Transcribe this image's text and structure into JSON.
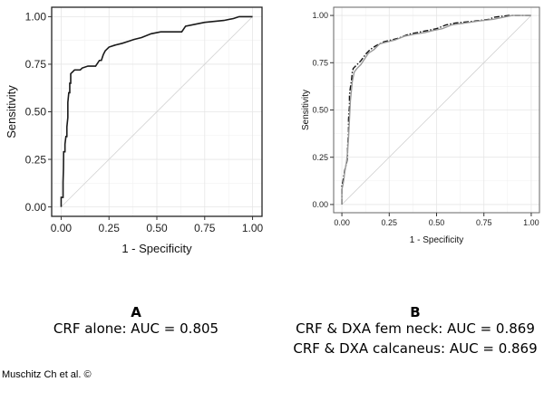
{
  "chart_data": [
    {
      "type": "line",
      "panel": "A",
      "caption": "CRF alone: AUC = 0.805",
      "xlabel": "1 - Specificity",
      "ylabel": "Sensitivity",
      "xlim": [
        0,
        1
      ],
      "ylim": [
        0,
        1
      ],
      "xticks": [
        "0.00",
        "0.25",
        "0.50",
        "0.75",
        "1.00"
      ],
      "yticks": [
        "0.00",
        "0.25",
        "0.50",
        "0.75",
        "1.00"
      ],
      "grid": true,
      "reference_line": true,
      "series": [
        {
          "color": "#1a1a1a",
          "style": "solid",
          "points": [
            [
              0,
              0
            ],
            [
              0,
              0.05
            ],
            [
              0.01,
              0.05
            ],
            [
              0.01,
              0.13
            ],
            [
              0.012,
              0.2
            ],
            [
              0.013,
              0.29
            ],
            [
              0.02,
              0.29
            ],
            [
              0.02,
              0.33
            ],
            [
              0.025,
              0.37
            ],
            [
              0.03,
              0.37
            ],
            [
              0.03,
              0.42
            ],
            [
              0.035,
              0.47
            ],
            [
              0.035,
              0.55
            ],
            [
              0.04,
              0.6
            ],
            [
              0.045,
              0.6
            ],
            [
              0.045,
              0.65
            ],
            [
              0.05,
              0.65
            ],
            [
              0.05,
              0.7
            ],
            [
              0.07,
              0.72
            ],
            [
              0.1,
              0.72
            ],
            [
              0.11,
              0.73
            ],
            [
              0.14,
              0.74
            ],
            [
              0.18,
              0.74
            ],
            [
              0.2,
              0.77
            ],
            [
              0.21,
              0.77
            ],
            [
              0.22,
              0.8
            ],
            [
              0.23,
              0.82
            ],
            [
              0.25,
              0.84
            ],
            [
              0.28,
              0.85
            ],
            [
              0.32,
              0.86
            ],
            [
              0.35,
              0.87
            ],
            [
              0.38,
              0.88
            ],
            [
              0.42,
              0.89
            ],
            [
              0.47,
              0.91
            ],
            [
              0.52,
              0.92
            ],
            [
              0.6,
              0.92
            ],
            [
              0.63,
              0.92
            ],
            [
              0.65,
              0.95
            ],
            [
              0.7,
              0.96
            ],
            [
              0.75,
              0.97
            ],
            [
              0.85,
              0.98
            ],
            [
              0.9,
              0.99
            ],
            [
              0.93,
              1
            ],
            [
              1,
              1
            ]
          ]
        }
      ]
    },
    {
      "type": "line",
      "panel": "B",
      "caption": [
        "CRF & DXA fem neck:  AUC = 0.869",
        "CRF & DXA calcaneus: AUC = 0.869"
      ],
      "xlabel": "1 - Specificity",
      "ylabel": "Sensitivity",
      "xlim": [
        0,
        1
      ],
      "ylim": [
        0,
        1
      ],
      "xticks": [
        "0.00",
        "0.25",
        "0.50",
        "0.75",
        "1.00"
      ],
      "yticks": [
        "0.00",
        "0.25",
        "0.50",
        "0.75",
        "1.00"
      ],
      "grid": true,
      "reference_line": true,
      "series": [
        {
          "color": "#111111",
          "style": "dashed",
          "points": [
            [
              0,
              0
            ],
            [
              0,
              0.1
            ],
            [
              0.005,
              0.12
            ],
            [
              0.01,
              0.15
            ],
            [
              0.015,
              0.18
            ],
            [
              0.02,
              0.2
            ],
            [
              0.025,
              0.22
            ],
            [
              0.03,
              0.25
            ],
            [
              0.03,
              0.3
            ],
            [
              0.035,
              0.38
            ],
            [
              0.035,
              0.45
            ],
            [
              0.04,
              0.52
            ],
            [
              0.04,
              0.58
            ],
            [
              0.045,
              0.62
            ],
            [
              0.05,
              0.65
            ],
            [
              0.055,
              0.7
            ],
            [
              0.06,
              0.72
            ],
            [
              0.08,
              0.74
            ],
            [
              0.1,
              0.76
            ],
            [
              0.13,
              0.8
            ],
            [
              0.15,
              0.82
            ],
            [
              0.18,
              0.84
            ],
            [
              0.22,
              0.86
            ],
            [
              0.26,
              0.87
            ],
            [
              0.3,
              0.88
            ],
            [
              0.35,
              0.9
            ],
            [
              0.4,
              0.91
            ],
            [
              0.45,
              0.92
            ],
            [
              0.5,
              0.93
            ],
            [
              0.55,
              0.95
            ],
            [
              0.6,
              0.96
            ],
            [
              0.7,
              0.97
            ],
            [
              0.78,
              0.98
            ],
            [
              0.8,
              0.99
            ],
            [
              0.88,
              1
            ],
            [
              1,
              1
            ]
          ]
        },
        {
          "color": "#9a9a9a",
          "style": "solid",
          "points": [
            [
              0,
              0
            ],
            [
              0,
              0.08
            ],
            [
              0.005,
              0.1
            ],
            [
              0.01,
              0.13
            ],
            [
              0.015,
              0.17
            ],
            [
              0.02,
              0.2
            ],
            [
              0.025,
              0.23
            ],
            [
              0.03,
              0.28
            ],
            [
              0.035,
              0.35
            ],
            [
              0.04,
              0.45
            ],
            [
              0.045,
              0.55
            ],
            [
              0.05,
              0.6
            ],
            [
              0.055,
              0.65
            ],
            [
              0.065,
              0.7
            ],
            [
              0.08,
              0.72
            ],
            [
              0.1,
              0.74
            ],
            [
              0.12,
              0.77
            ],
            [
              0.14,
              0.8
            ],
            [
              0.17,
              0.82
            ],
            [
              0.2,
              0.85
            ],
            [
              0.24,
              0.86
            ],
            [
              0.28,
              0.87
            ],
            [
              0.33,
              0.89
            ],
            [
              0.38,
              0.9
            ],
            [
              0.44,
              0.91
            ],
            [
              0.48,
              0.92
            ],
            [
              0.53,
              0.93
            ],
            [
              0.58,
              0.95
            ],
            [
              0.65,
              0.96
            ],
            [
              0.72,
              0.97
            ],
            [
              0.8,
              0.98
            ],
            [
              0.85,
              0.99
            ],
            [
              0.9,
              1
            ],
            [
              1,
              1
            ]
          ]
        }
      ]
    }
  ],
  "credit": "Muschitz Ch et al. ©"
}
